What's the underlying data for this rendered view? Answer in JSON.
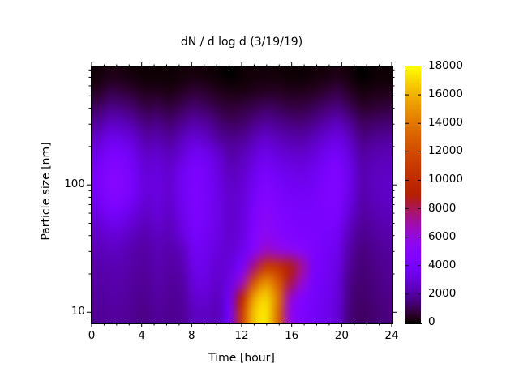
{
  "title": "dN / d log d (3/19/19)",
  "chart_data": {
    "type": "heatmap",
    "title": "dN / d log d (3/19/19)",
    "xlabel": "Time [hour]",
    "ylabel": "Particle size [nm]",
    "xlim": [
      0,
      24
    ],
    "x_major_ticks": [
      0,
      4,
      8,
      12,
      16,
      20,
      24
    ],
    "x_tick_labels": [
      "0",
      "4",
      "8",
      "12",
      "16",
      "20",
      "24"
    ],
    "x_minor_step": 1,
    "y_scale": "log",
    "ylim": [
      8.3,
      840
    ],
    "y_major_ticks": [
      10,
      100
    ],
    "y_tick_labels": [
      "10",
      "100"
    ],
    "y_minor_ticks": [
      9,
      20,
      30,
      40,
      50,
      60,
      70,
      80,
      90,
      200,
      300,
      400,
      500,
      600,
      700,
      800
    ],
    "grid": false,
    "legend_position": "right-colorbar",
    "colorbar": {
      "min": 0,
      "max": 18000,
      "ticks": [
        0,
        2000,
        4000,
        6000,
        8000,
        10000,
        12000,
        14000,
        16000,
        18000
      ],
      "tick_labels": [
        "0",
        "2000",
        "4000",
        "6000",
        "8000",
        "10000",
        "12000",
        "14000",
        "16000",
        "18000"
      ],
      "palette": "gnuplot-default-pm3d black-violet-red-yellow",
      "palette_stops": [
        "#000000",
        "#5500a3",
        "#7803fb",
        "#9309dd",
        "#aa1657",
        "#be2c00",
        "#cc4c00",
        "#e17800",
        "#f0b300",
        "#ffff00"
      ]
    },
    "x": [
      0,
      1,
      2,
      3,
      4,
      5,
      6,
      7,
      8,
      9,
      10,
      11,
      12,
      13,
      14,
      15,
      16,
      17,
      18,
      19,
      20,
      21,
      22,
      23,
      24
    ],
    "sizes_nm": [
      8.3,
      11,
      15,
      21,
      28,
      38,
      52,
      71,
      96,
      131,
      178,
      241,
      328,
      445,
      605,
      822
    ],
    "values_note": "dN/dlogd [cm^-3]; rows ordered smallest size (bottom) to largest (top), columns hourly 0-24",
    "values": [
      [
        1800,
        1900,
        1900,
        1700,
        1600,
        1900,
        1700,
        1800,
        2400,
        2500,
        2300,
        3800,
        11000,
        16500,
        17500,
        13500,
        5800,
        4300,
        3800,
        3400,
        2800,
        1400,
        1100,
        1300,
        1500
      ],
      [
        1900,
        2000,
        2000,
        1800,
        1700,
        2000,
        1800,
        1900,
        2700,
        2800,
        2400,
        3600,
        9500,
        15500,
        17000,
        14000,
        6300,
        4600,
        3900,
        3500,
        2900,
        1500,
        1200,
        1400,
        1600
      ],
      [
        2000,
        2100,
        2100,
        1900,
        1800,
        2100,
        1900,
        2000,
        3000,
        3100,
        2600,
        3300,
        6500,
        12500,
        15000,
        13000,
        8200,
        6200,
        4000,
        3600,
        3000,
        1600,
        1300,
        1500,
        1700
      ],
      [
        2100,
        2200,
        2200,
        2000,
        1900,
        2200,
        2000,
        2200,
        3300,
        3300,
        2800,
        3000,
        4200,
        7500,
        11000,
        10500,
        8800,
        7200,
        4200,
        3700,
        3200,
        1800,
        1400,
        1600,
        1800
      ],
      [
        2300,
        2500,
        2400,
        2100,
        2000,
        2300,
        2100,
        2400,
        3600,
        3500,
        3000,
        2800,
        3400,
        5000,
        6500,
        6000,
        5600,
        5100,
        4300,
        3800,
        3400,
        2000,
        1500,
        1700,
        1900
      ],
      [
        2600,
        2900,
        2800,
        2400,
        2200,
        2500,
        2300,
        3000,
        3900,
        3700,
        3200,
        2700,
        3100,
        4600,
        5500,
        5000,
        4600,
        4300,
        4200,
        4000,
        3700,
        2300,
        1700,
        1900,
        2100
      ],
      [
        3000,
        3600,
        3500,
        2900,
        2500,
        2800,
        2500,
        3300,
        4200,
        3900,
        3300,
        2700,
        3000,
        4300,
        5200,
        4700,
        4300,
        4100,
        4100,
        4200,
        4100,
        2700,
        1900,
        2100,
        2300
      ],
      [
        3600,
        4400,
        4300,
        3500,
        2800,
        3000,
        2700,
        3500,
        4300,
        4000,
        3300,
        2700,
        2900,
        4000,
        4900,
        4400,
        4000,
        3900,
        4000,
        4300,
        4400,
        3100,
        2100,
        2300,
        2500
      ],
      [
        4000,
        4900,
        4800,
        3900,
        3000,
        3100,
        2800,
        3600,
        4300,
        4000,
        3200,
        2600,
        2800,
        3700,
        4500,
        4000,
        3700,
        3600,
        3800,
        4300,
        4500,
        3300,
        2200,
        2400,
        2600
      ],
      [
        3900,
        4800,
        4700,
        3800,
        2900,
        3000,
        2700,
        3500,
        4200,
        3900,
        3100,
        2400,
        2600,
        3300,
        4000,
        3600,
        3300,
        3200,
        3500,
        4100,
        4400,
        3300,
        2200,
        2400,
        2500
      ],
      [
        3400,
        4200,
        4100,
        3400,
        2600,
        2700,
        2400,
        2900,
        3700,
        3500,
        2800,
        2100,
        2300,
        2900,
        3400,
        3000,
        2800,
        2700,
        3000,
        3600,
        3900,
        3000,
        2000,
        2200,
        2300
      ],
      [
        2700,
        3400,
        3300,
        2800,
        2100,
        2200,
        1900,
        2400,
        2900,
        2600,
        2000,
        1700,
        1800,
        2300,
        2700,
        2400,
        2200,
        2100,
        2400,
        2900,
        3200,
        2500,
        1600,
        1800,
        1900
      ],
      [
        1900,
        2500,
        2400,
        2000,
        1500,
        1600,
        1300,
        1700,
        2100,
        1900,
        1400,
        1100,
        1200,
        1600,
        1900,
        1700,
        1500,
        1400,
        1700,
        2100,
        2400,
        1800,
        1100,
        1200,
        1300
      ],
      [
        1100,
        1600,
        1500,
        1200,
        800,
        900,
        700,
        1000,
        1300,
        1100,
        800,
        600,
        700,
        900,
        1100,
        1000,
        800,
        800,
        1000,
        1300,
        1500,
        1000,
        500,
        600,
        700
      ],
      [
        400,
        800,
        700,
        500,
        300,
        300,
        200,
        400,
        600,
        500,
        300,
        200,
        200,
        300,
        400,
        400,
        300,
        300,
        400,
        600,
        800,
        400,
        150,
        200,
        250
      ],
      [
        100,
        250,
        200,
        100,
        50,
        50,
        50,
        100,
        150,
        100,
        50,
        0,
        50,
        100,
        100,
        100,
        50,
        50,
        100,
        150,
        250,
        100,
        0,
        50,
        50
      ]
    ]
  }
}
